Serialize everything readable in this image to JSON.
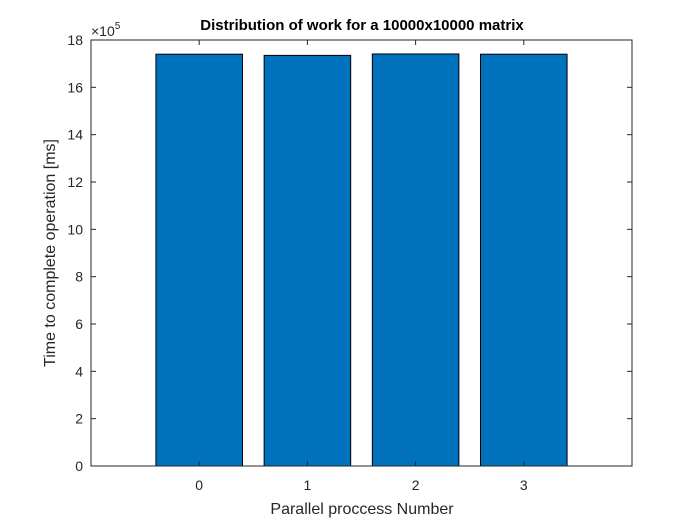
{
  "chart_data": {
    "type": "bar",
    "title": "Distribution of work for a 10000x10000 matrix",
    "xlabel": "Parallel proccess Number",
    "ylabel": "Time to complete operation [ms]",
    "categories": [
      "0",
      "1",
      "2",
      "3"
    ],
    "values": [
      1740000,
      1735000,
      1741000,
      1740000
    ],
    "ylim": [
      0,
      1800000
    ],
    "xlim": [
      -1,
      4
    ],
    "y_ticks": [
      0,
      200000,
      400000,
      600000,
      800000,
      1000000,
      1200000,
      1400000,
      1600000,
      1800000
    ],
    "y_tick_labels": [
      "0",
      "2",
      "4",
      "6",
      "8",
      "10",
      "12",
      "14",
      "16",
      "18"
    ],
    "y_exponent_base": "×10",
    "y_exponent_power": "5",
    "bar_color": "#0072BD",
    "grid": false,
    "legend": "none"
  }
}
